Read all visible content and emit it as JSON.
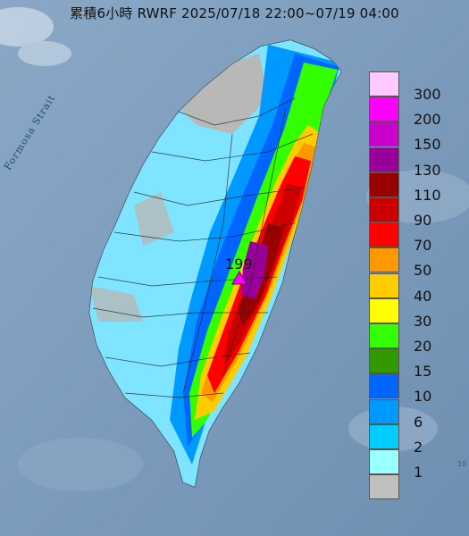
{
  "title": "累積6小時 RWRF 2025/07/18 22:00~07/19 04:00",
  "strait_label": "Formosa Strait",
  "peak_value": "199",
  "corner_text": "10",
  "legend": [
    {
      "label": "300",
      "color": "#ffc8ff"
    },
    {
      "label": "200",
      "color": "#ff00ff"
    },
    {
      "label": "150",
      "color": "#cc00cc"
    },
    {
      "label": "130",
      "color": "#990099"
    },
    {
      "label": "110",
      "color": "#990000"
    },
    {
      "label": "90",
      "color": "#cc0000"
    },
    {
      "label": "70",
      "color": "#ff0000"
    },
    {
      "label": "50",
      "color": "#ff9900"
    },
    {
      "label": "40",
      "color": "#ffcc00"
    },
    {
      "label": "30",
      "color": "#ffff00"
    },
    {
      "label": "20",
      "color": "#33ff00"
    },
    {
      "label": "15",
      "color": "#339900"
    },
    {
      "label": "10",
      "color": "#0066ff"
    },
    {
      "label": "6",
      "color": "#0099ff"
    },
    {
      "label": "2",
      "color": "#00ccff"
    },
    {
      "label": "1",
      "color": "#99ffff"
    },
    {
      "label": "",
      "color": "#c0c0c0"
    }
  ]
}
